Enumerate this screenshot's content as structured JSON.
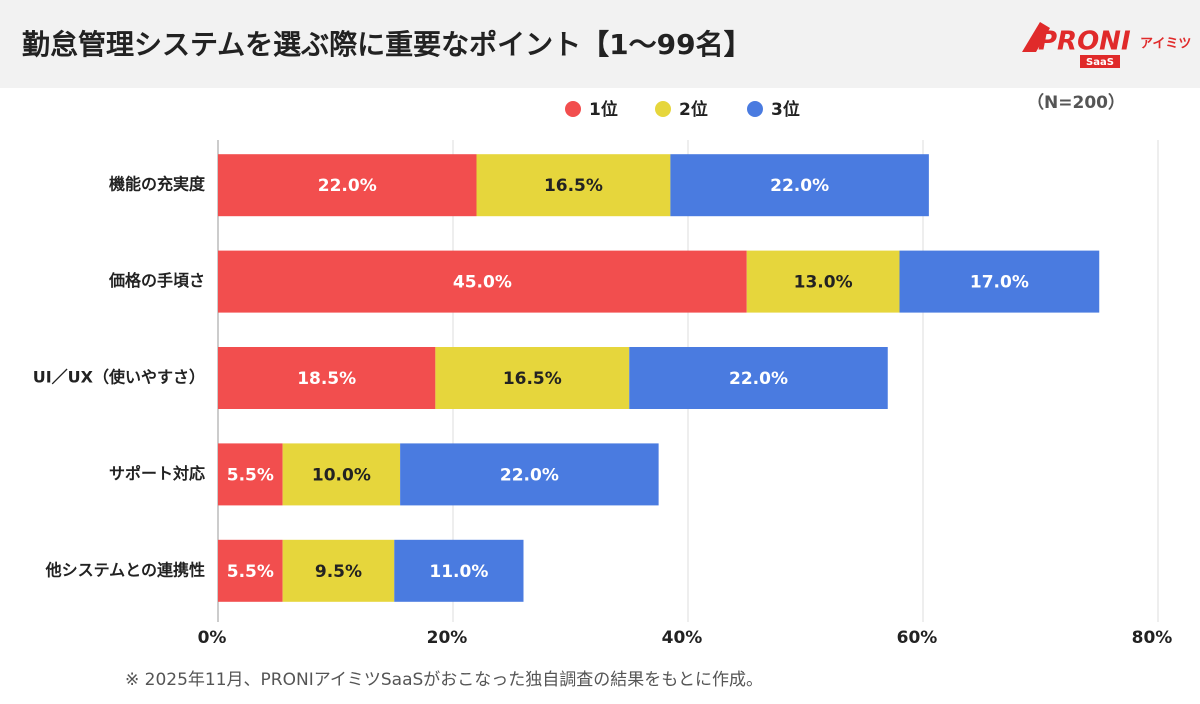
{
  "logo": {
    "brand": "PRONI",
    "sub": "アイミツ",
    "tag": "SaaS"
  },
  "chart_data": {
    "type": "hbar-stacked",
    "title": "勤怠管理システムを選ぶ際に重要なポイント【1〜99名】",
    "note": "（N=200）",
    "footnote": "※ 2025年11月、PRONIアイミツSaaSがおこなった独自調査の結果をもとに作成。",
    "categories": [
      "機能の充実度",
      "価格の手頃さ",
      "UI／UX（使いやすさ）",
      "サポート対応",
      "他システムとの連携性"
    ],
    "series": [
      {
        "name": "1位",
        "color": "#f24e4e",
        "values": [
          22,
          45,
          18.5,
          5.5,
          5.5
        ],
        "value_labels": [
          "22.0%",
          "45.0%",
          "18.5%",
          "5.5%",
          "5.5%"
        ]
      },
      {
        "name": "2位",
        "color": "#e6d63c",
        "values": [
          16.5,
          13,
          16.5,
          10,
          9.5
        ],
        "value_labels": [
          "16.5%",
          "13.0%",
          "16.5%",
          "10.0%",
          "9.5%"
        ]
      },
      {
        "name": "3位",
        "color": "#4a7be0",
        "values": [
          22,
          17,
          22,
          22,
          11
        ],
        "value_labels": [
          "22.0%",
          "17.0%",
          "22.0%",
          "22.0%",
          "11.0%"
        ]
      }
    ],
    "xlim": [
      0,
      80
    ],
    "xticks": [
      {
        "value": 0,
        "label": "0%"
      },
      {
        "value": 20,
        "label": "20%"
      },
      {
        "value": 40,
        "label": "40%"
      },
      {
        "value": 60,
        "label": "60%"
      },
      {
        "value": 80,
        "label": "80%"
      }
    ],
    "grid": true
  }
}
